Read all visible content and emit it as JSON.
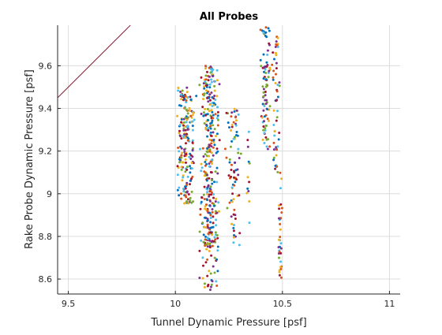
{
  "chart_data": {
    "type": "scatter",
    "title": "All Probes",
    "xlabel": "Tunnel Dynamic Pressure [psf]",
    "ylabel": "Rake Probe Dynamic Pressure [psf]",
    "xlim": [
      9.45,
      11.05
    ],
    "ylim": [
      8.53,
      9.79
    ],
    "xticks": [
      9.5,
      10,
      10.5,
      11
    ],
    "xtick_labels": [
      "9.5",
      "10",
      "10.5",
      "11"
    ],
    "yticks": [
      8.6,
      8.8,
      9,
      9.2,
      9.4,
      9.6
    ],
    "ytick_labels": [
      "8.6",
      "8.8",
      "9",
      "9.2",
      "9.4",
      "9.6"
    ],
    "grid": true,
    "legend": "none",
    "series_colors": [
      "#0072BD",
      "#D95319",
      "#EDB120",
      "#7E2F8E",
      "#77AC30",
      "#4DBEEE",
      "#A2142F"
    ],
    "reference_line": {
      "name": "y = x",
      "color": "#7E2135",
      "x": [
        9.45,
        9.79
      ],
      "y": [
        9.45,
        9.79
      ]
    },
    "clusters": [
      {
        "x_center": 10.05,
        "x_spread": 0.05,
        "y_min": 8.95,
        "y_max": 9.5,
        "count": 190
      },
      {
        "x_center": 10.16,
        "x_spread": 0.05,
        "y_min": 8.75,
        "y_max": 9.6,
        "count": 320
      },
      {
        "x_center": 10.16,
        "x_spread": 0.05,
        "y_min": 8.55,
        "y_max": 8.8,
        "count": 40
      },
      {
        "x_center": 10.27,
        "x_spread": 0.04,
        "y_min": 8.75,
        "y_max": 9.4,
        "count": 80
      },
      {
        "x_center": 10.34,
        "x_spread": 0.01,
        "y_min": 8.85,
        "y_max": 9.3,
        "count": 12
      },
      {
        "x_center": 10.42,
        "x_spread": 0.025,
        "y_min": 9.2,
        "y_max": 9.78,
        "count": 90
      },
      {
        "x_center": 10.47,
        "x_spread": 0.02,
        "y_min": 9.1,
        "y_max": 9.75,
        "count": 55
      },
      {
        "x_center": 10.49,
        "x_spread": 0.01,
        "y_min": 8.55,
        "y_max": 9.1,
        "count": 35
      }
    ]
  }
}
